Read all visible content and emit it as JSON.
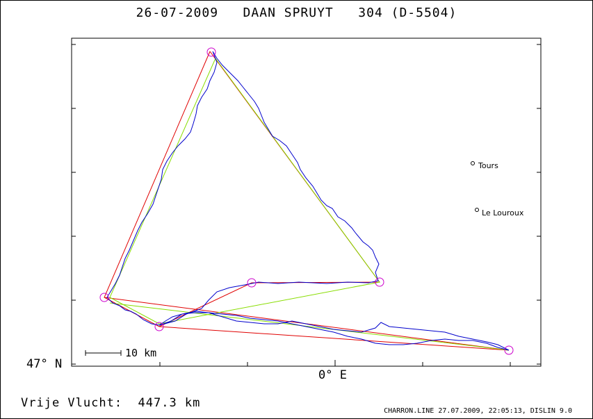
{
  "title": "26-07-2009   DAAN SPRUYT   304 (D-5504)",
  "axes": {
    "lat_label": "47° N",
    "lon_label": "0° E"
  },
  "scale_bar_label": "10 km",
  "places": [
    {
      "name": "Tours"
    },
    {
      "name": "Le Louroux"
    }
  ],
  "distance_label": "Vrije Vlucht:  447.3 km",
  "footer": "CHARRON.LINE 27.07.2009, 22:05:13, DISLIN 9.0",
  "colors": {
    "track": "#0000cc",
    "task_route": "#e00000",
    "optimized_route": "#88dd00",
    "turnpoint_marker": "#cc00cc"
  }
}
